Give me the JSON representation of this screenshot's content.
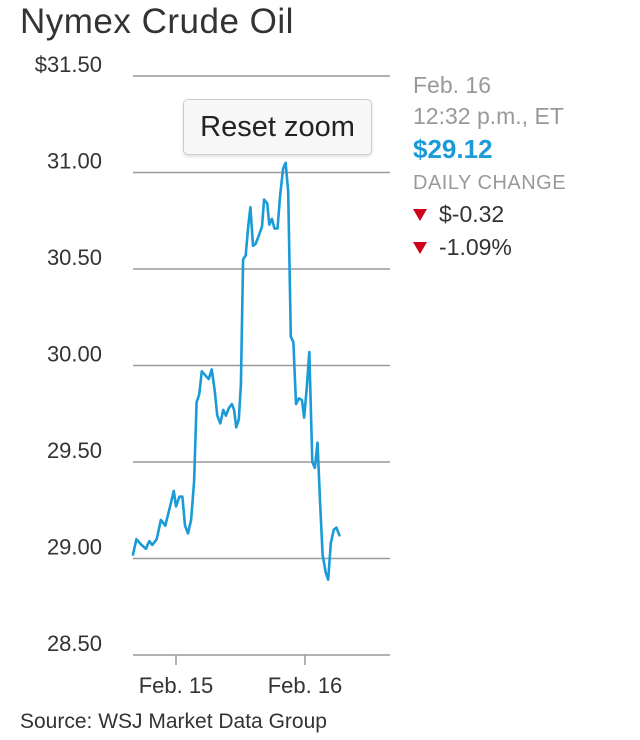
{
  "title": "Nymex Crude Oil",
  "reset_label": "Reset zoom",
  "info": {
    "date": "Feb. 16",
    "time": "12:32 p.m., ET",
    "price": "$29.12",
    "daily_change_label": "DAILY CHANGE",
    "change_abs": "$-0.32",
    "change_pct": "-1.09%"
  },
  "source": "Source: WSJ Market Data Group",
  "colors": {
    "line": "#1a9bd7",
    "price": "#1a9bd7",
    "down": "#d0021b",
    "grid": "#999999"
  },
  "chart_data": {
    "type": "line",
    "title": "Nymex Crude Oil",
    "xlabel": "",
    "ylabel": "",
    "ylim": [
      28.5,
      31.5
    ],
    "y_ticks": [
      "$31.50",
      "31.00",
      "30.50",
      "30.00",
      "29.50",
      "29.00",
      "28.50"
    ],
    "y_tick_values": [
      31.5,
      31.0,
      30.5,
      30.0,
      29.5,
      29.0,
      28.5
    ],
    "x_tick_labels": [
      "Feb. 15",
      "Feb. 16"
    ],
    "x_tick_positions": [
      10,
      40
    ],
    "x_range": [
      0,
      60
    ],
    "grid": true,
    "series": [
      {
        "values": [
          [
            0,
            29.02
          ],
          [
            0.8,
            29.1
          ],
          [
            2,
            29.07
          ],
          [
            3,
            29.05
          ],
          [
            3.8,
            29.09
          ],
          [
            4.5,
            29.07
          ],
          [
            5.5,
            29.1
          ],
          [
            6.5,
            29.2
          ],
          [
            7.5,
            29.17
          ],
          [
            8.5,
            29.26
          ],
          [
            9.5,
            29.35
          ],
          [
            10,
            29.27
          ],
          [
            10.8,
            29.32
          ],
          [
            11.5,
            29.32
          ],
          [
            12.1,
            29.17
          ],
          [
            12.8,
            29.13
          ],
          [
            13.5,
            29.2
          ],
          [
            14.2,
            29.4
          ],
          [
            14.8,
            29.81
          ],
          [
            15.4,
            29.85
          ],
          [
            16,
            29.97
          ],
          [
            16.8,
            29.95
          ],
          [
            17.6,
            29.93
          ],
          [
            18.3,
            29.98
          ],
          [
            19,
            29.87
          ],
          [
            19.6,
            29.74
          ],
          [
            20.3,
            29.7
          ],
          [
            21,
            29.77
          ],
          [
            21.6,
            29.74
          ],
          [
            22.3,
            29.78
          ],
          [
            23,
            29.8
          ],
          [
            23.5,
            29.77
          ],
          [
            24,
            29.68
          ],
          [
            24.6,
            29.72
          ],
          [
            25.1,
            29.9
          ],
          [
            25.6,
            30.55
          ],
          [
            26.2,
            30.57
          ],
          [
            26.8,
            30.72
          ],
          [
            27.3,
            30.82
          ],
          [
            27.9,
            30.62
          ],
          [
            28.5,
            30.63
          ],
          [
            29.2,
            30.67
          ],
          [
            30,
            30.72
          ],
          [
            30.5,
            30.86
          ],
          [
            31.2,
            30.84
          ],
          [
            31.7,
            30.73
          ],
          [
            32.3,
            30.76
          ],
          [
            32.9,
            30.71
          ],
          [
            33.6,
            30.71
          ],
          [
            34.2,
            30.88
          ],
          [
            34.9,
            31.02
          ],
          [
            35.5,
            31.05
          ],
          [
            36.1,
            30.9
          ],
          [
            36.7,
            30.15
          ],
          [
            37.3,
            30.12
          ],
          [
            37.9,
            29.8
          ],
          [
            38.6,
            29.83
          ],
          [
            39.3,
            29.82
          ],
          [
            39.8,
            29.73
          ],
          [
            40.4,
            29.88
          ],
          [
            41,
            30.07
          ],
          [
            41.7,
            29.5
          ],
          [
            42.3,
            29.47
          ],
          [
            42.9,
            29.6
          ],
          [
            43.5,
            29.3
          ],
          [
            44.1,
            29.02
          ],
          [
            44.8,
            28.93
          ],
          [
            45.4,
            28.89
          ],
          [
            46,
            29.08
          ],
          [
            46.7,
            29.15
          ],
          [
            47.3,
            29.16
          ],
          [
            48,
            29.12
          ]
        ]
      }
    ]
  }
}
